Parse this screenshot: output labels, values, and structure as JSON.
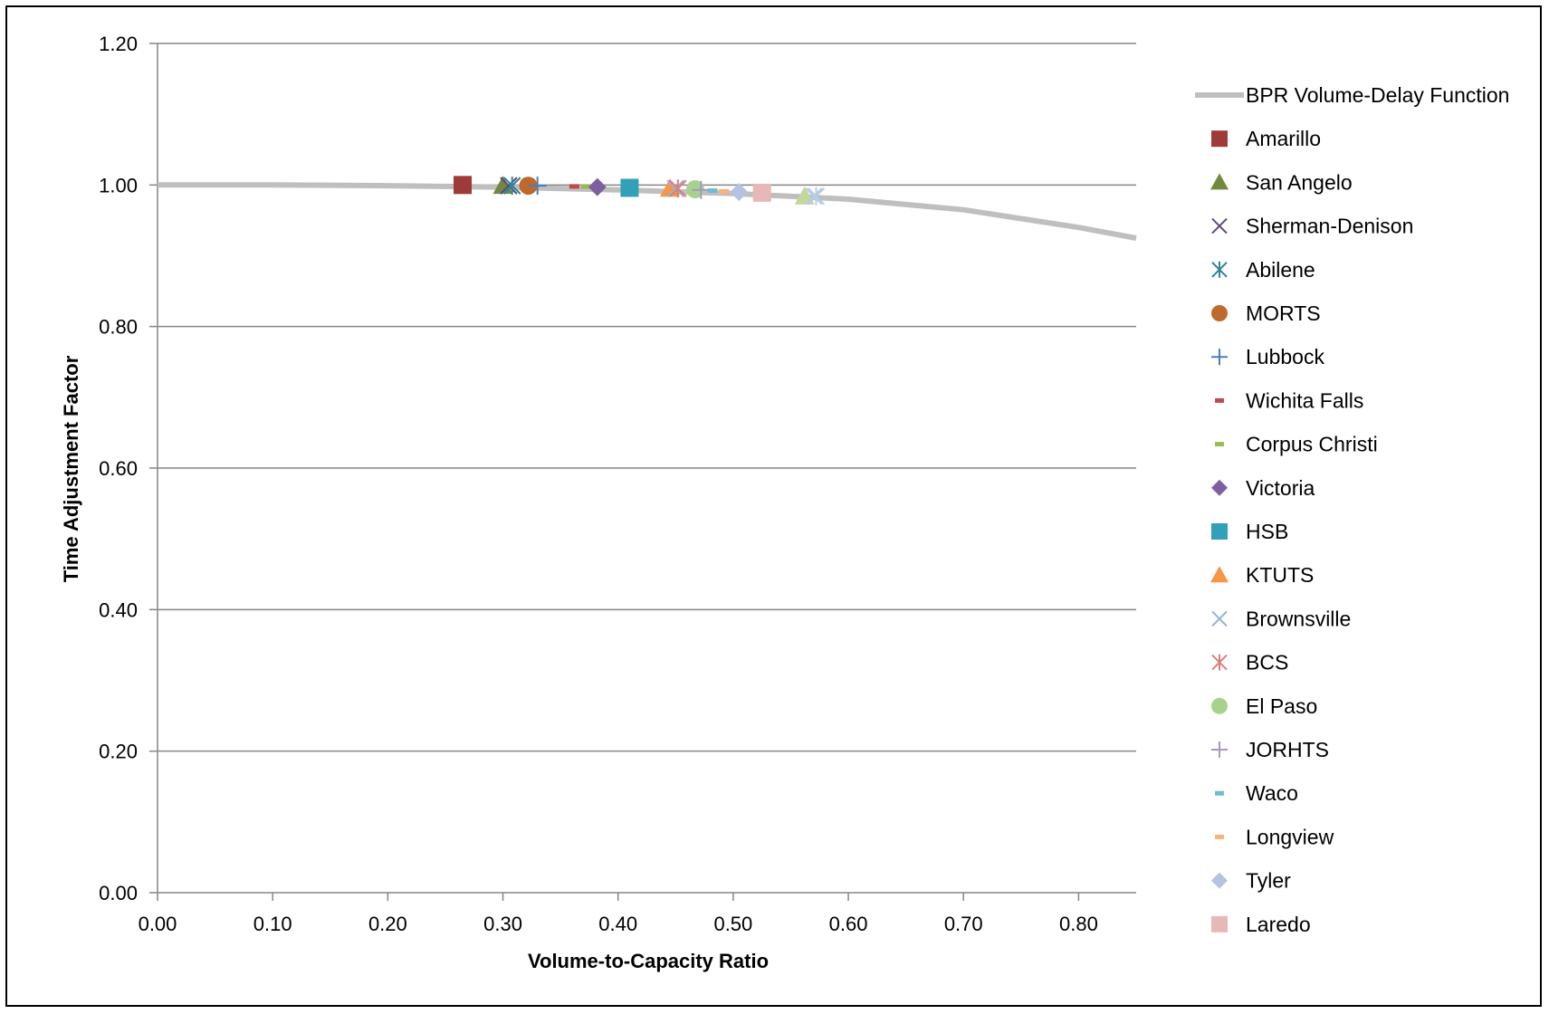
{
  "chart_data": {
    "type": "scatter",
    "title": "",
    "xlabel": "Volume-to-Capacity Ratio",
    "ylabel": "Time Adjustment Factor",
    "xlim": [
      0,
      0.85
    ],
    "ylim": [
      0,
      1.2
    ],
    "x_ticks": [
      "0.00",
      "0.10",
      "0.20",
      "0.30",
      "0.40",
      "0.50",
      "0.60",
      "0.70",
      "0.80"
    ],
    "y_ticks": [
      "0.00",
      "0.20",
      "0.40",
      "0.60",
      "0.80",
      "1.00",
      "1.20"
    ],
    "grid": "horizontal",
    "legend_position": "right",
    "line_series": {
      "name": "BPR Volume-Delay Function",
      "color": "#BFBFBF",
      "points": [
        [
          0.0,
          1.0
        ],
        [
          0.1,
          1.0
        ],
        [
          0.2,
          0.999
        ],
        [
          0.3,
          0.997
        ],
        [
          0.4,
          0.993
        ],
        [
          0.5,
          0.988
        ],
        [
          0.6,
          0.98
        ],
        [
          0.7,
          0.965
        ],
        [
          0.8,
          0.94
        ],
        [
          0.85,
          0.925
        ]
      ]
    },
    "series": [
      {
        "name": "Amarillo",
        "marker": "square",
        "color": "#9E3A38",
        "x": 0.265,
        "y": 1.0
      },
      {
        "name": "San Angelo",
        "marker": "triangle",
        "color": "#71893F",
        "x": 0.3,
        "y": 0.999
      },
      {
        "name": "Sherman-Denison",
        "marker": "x",
        "color": "#5E4A7D",
        "x": 0.305,
        "y": 0.999
      },
      {
        "name": "Abilene",
        "marker": "asterisk",
        "color": "#30849B",
        "x": 0.308,
        "y": 0.999
      },
      {
        "name": "MORTS",
        "marker": "circle",
        "color": "#C0692D",
        "x": 0.322,
        "y": 0.999
      },
      {
        "name": "Lubbock",
        "marker": "plus",
        "color": "#4A7EBB",
        "x": 0.33,
        "y": 0.999
      },
      {
        "name": "Wichita Falls",
        "marker": "dash",
        "color": "#BE4B48",
        "x": 0.362,
        "y": 0.998
      },
      {
        "name": "Corpus Christi",
        "marker": "dash",
        "color": "#98B954",
        "x": 0.372,
        "y": 0.998
      },
      {
        "name": "Victoria",
        "marker": "diamond",
        "color": "#7D60A0",
        "x": 0.382,
        "y": 0.997
      },
      {
        "name": "HSB",
        "marker": "square",
        "color": "#31A0B8",
        "x": 0.41,
        "y": 0.996
      },
      {
        "name": "KTUTS",
        "marker": "triangle",
        "color": "#F79646",
        "x": 0.445,
        "y": 0.995
      },
      {
        "name": "Brownsville",
        "marker": "x",
        "color": "#95B3D7",
        "x": 0.45,
        "y": 0.995
      },
      {
        "name": "BCS",
        "marker": "asterisk",
        "color": "#D9807E",
        "x": 0.452,
        "y": 0.995
      },
      {
        "name": "El Paso",
        "marker": "circle",
        "color": "#A9D18E",
        "x": 0.467,
        "y": 0.994
      },
      {
        "name": "JORHTS",
        "marker": "plus",
        "color": "#A896C3",
        "x": 0.472,
        "y": 0.993
      },
      {
        "name": "Waco",
        "marker": "dash",
        "color": "#6FBDD1",
        "x": 0.482,
        "y": 0.992
      },
      {
        "name": "Longview",
        "marker": "dash",
        "color": "#F9B37A",
        "x": 0.492,
        "y": 0.991
      },
      {
        "name": "Tyler",
        "marker": "diamond",
        "color": "#B4C3E2",
        "x": 0.505,
        "y": 0.99
      },
      {
        "name": "Laredo",
        "marker": "square",
        "color": "#E6B9B8",
        "x": 0.525,
        "y": 0.989
      },
      {
        "name": "",
        "marker": "triangle",
        "color": "#C4D79B",
        "x": 0.562,
        "y": 0.984
      },
      {
        "name": "",
        "marker": "x",
        "color": "#B8CCE4",
        "x": 0.57,
        "y": 0.984
      },
      {
        "name": "",
        "marker": "asterisk",
        "color": "#B8CCE4",
        "x": 0.572,
        "y": 0.984
      }
    ]
  }
}
